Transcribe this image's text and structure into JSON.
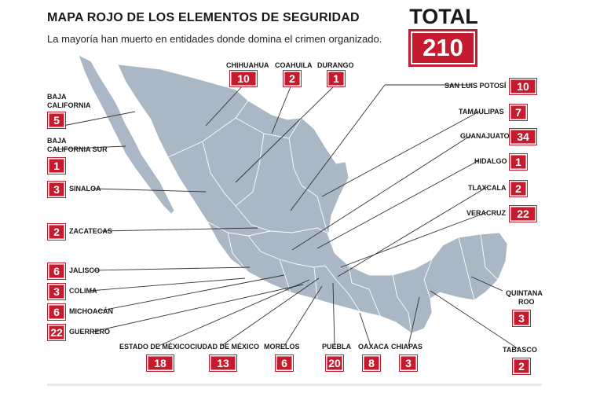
{
  "header": {
    "title": "MAPA ROJO DE LOS ELEMENTOS DE SEGURIDAD",
    "subtitle": "La mayoría han muerto en entidades donde domina el crimen organizado."
  },
  "total": {
    "label": "TOTAL",
    "value": "210"
  },
  "colors": {
    "accent": "#c41b2e",
    "map_fill": "#a9b8c4",
    "border": "#ffffff",
    "leader": "#333333"
  },
  "states": {
    "chihuahua": {
      "name": "CHIHUAHUA",
      "count": "10"
    },
    "coahuila": {
      "name": "COAHUILA",
      "count": "2"
    },
    "durango": {
      "name": "DURANGO",
      "count": "1"
    },
    "baja_california": {
      "name_line1": "BAJA",
      "name_line2": "CALIFORNIA",
      "count": "5"
    },
    "baja_california_sur": {
      "name_line1": "BAJA",
      "name_line2": "CALIFORNIA SUR",
      "count": "1"
    },
    "sinaloa": {
      "name": "SINALOA",
      "count": "3"
    },
    "zacatecas": {
      "name": "ZACATECAS",
      "count": "2"
    },
    "jalisco": {
      "name": "JALISCO",
      "count": "6"
    },
    "colima": {
      "name": "COLIMA",
      "count": "3"
    },
    "michoacan": {
      "name": "MICHOACÁN",
      "count": "6"
    },
    "guerrero": {
      "name": "GUERRERO",
      "count": "22"
    },
    "estado_mexico": {
      "name": "ESTADO DE MÉXICO",
      "count": "18"
    },
    "cdmx": {
      "name": "CIUDAD DE MÉXICO",
      "count": "13"
    },
    "morelos": {
      "name": "MORELOS",
      "count": "6"
    },
    "puebla": {
      "name": "PUEBLA",
      "count": "20"
    },
    "oaxaca": {
      "name": "OAXACA",
      "count": "8"
    },
    "chiapas": {
      "name": "CHIAPAS",
      "count": "3"
    },
    "tabasco": {
      "name": "TABASCO",
      "count": "2"
    },
    "quintana_roo": {
      "name_line1": "QUINTANA",
      "name_line2": "ROO",
      "count": "3"
    },
    "veracruz": {
      "name": "VERACRUZ",
      "count": "22"
    },
    "tlaxcala": {
      "name": "TLAXCALA",
      "count": "2"
    },
    "hidalgo": {
      "name": "HIDALGO",
      "count": "1"
    },
    "guanajuato": {
      "name": "GUANAJUATO",
      "count": "34"
    },
    "tamaulipas": {
      "name": "TAMAULIPAS",
      "count": "7"
    },
    "san_luis_potosi": {
      "name": "SAN LUIS POTOSÍ",
      "count": "10"
    }
  }
}
